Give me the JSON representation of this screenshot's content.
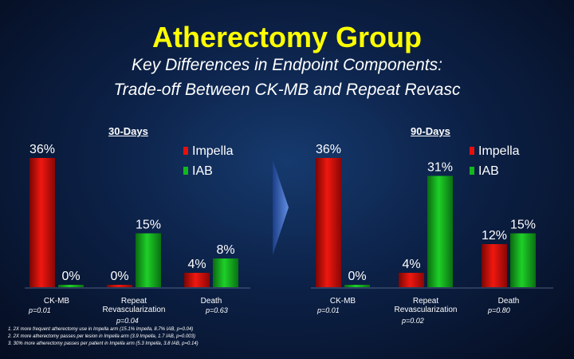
{
  "title": "Atherectomy Group",
  "subtitle_line1": "Key Differences in Endpoint Components:",
  "subtitle_line2": "Trade-off  Between CK-MB and Repeat Revasc",
  "chart_data": [
    {
      "type": "bar",
      "title": "30-Days",
      "categories": [
        "CK-MB",
        "Repeat Revascularization",
        "Death"
      ],
      "series": [
        {
          "name": "Impella",
          "values": [
            36,
            0,
            4
          ],
          "labels": [
            "36%",
            "0%",
            "4%"
          ],
          "color": "#e8100c"
        },
        {
          "name": "IAB",
          "values": [
            0,
            15,
            8
          ],
          "labels": [
            "0%",
            "15%",
            "8%"
          ],
          "color": "#14b81c"
        }
      ],
      "p_values": [
        "p=0.01",
        "p=0.04",
        "p=0.63"
      ],
      "ylim": [
        0,
        36
      ],
      "legend_position": "top-right"
    },
    {
      "type": "bar",
      "title": "90-Days",
      "categories": [
        "CK-MB",
        "Repeat Revascularization",
        "Death"
      ],
      "series": [
        {
          "name": "Impella",
          "values": [
            36,
            4,
            12
          ],
          "labels": [
            "36%",
            "4%",
            "12%"
          ],
          "color": "#e8100c"
        },
        {
          "name": "IAB",
          "values": [
            0,
            31,
            15
          ],
          "labels": [
            "0%",
            "31%",
            "15%"
          ],
          "color": "#14b81c"
        }
      ],
      "p_values": [
        "p=0.01",
        "p=0.02",
        "p=0.80"
      ],
      "ylim": [
        0,
        36
      ],
      "legend_position": "top-right"
    }
  ],
  "footnotes": [
    "1. 2X more frequent atherectomy use in Impella arm (15.1% Impella, 8.7% IAB, p=0.04)",
    "2. 2X more atherectomy passes per lesion in Impella arm (3.9 Impella, 1.7 IAB, p=0.003)",
    "3. 30% more atherectomy passes per patient in Impella arm (5.3 Impella, 3.8 IAB, p=0.14)"
  ],
  "colors": {
    "title": "#ffff00",
    "impella": "#e8100c",
    "iab": "#14b81c",
    "arrow": "#5a8ae0"
  }
}
